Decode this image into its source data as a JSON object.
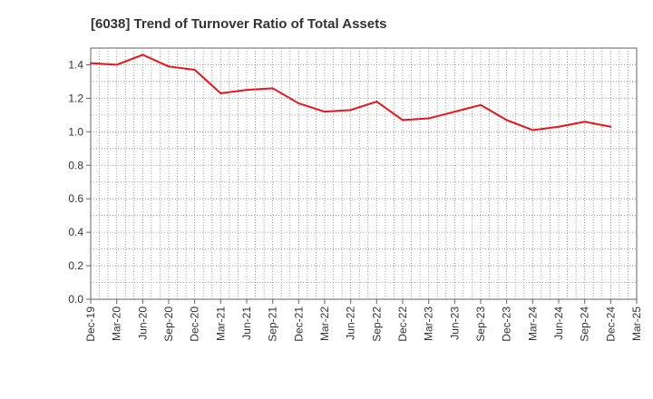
{
  "chart_data": {
    "type": "line",
    "title": "[6038]  Trend of Turnover Ratio of Total Assets",
    "xlabel": "",
    "ylabel": "",
    "ylim": [
      0,
      1.5
    ],
    "yticks": [
      0.0,
      0.2,
      0.4,
      0.6,
      0.8,
      1.0,
      1.2,
      1.4
    ],
    "ytick_labels": [
      "0.0",
      "0.2",
      "0.4",
      "0.6",
      "0.8",
      "1.0",
      "1.2",
      "1.4"
    ],
    "xtick_labels": [
      "Dec-19",
      "Mar-20",
      "Jun-20",
      "Sep-20",
      "Dec-20",
      "Mar-21",
      "Jun-21",
      "Sep-21",
      "Dec-21",
      "Mar-22",
      "Jun-22",
      "Sep-22",
      "Dec-22",
      "Mar-23",
      "Jun-23",
      "Sep-23",
      "Dec-23",
      "Mar-24",
      "Jun-24",
      "Sep-24",
      "Dec-24",
      "Mar-25"
    ],
    "grid": true,
    "series": [
      {
        "color": "#e8141b",
        "x": [
          "Dec-19",
          "Mar-20",
          "Jun-20",
          "Sep-20",
          "Dec-20",
          "Mar-21",
          "Jun-21",
          "Sep-21",
          "Dec-21",
          "Mar-22",
          "Jun-22",
          "Sep-22",
          "Dec-22",
          "Mar-23",
          "Jun-23",
          "Sep-23",
          "Dec-23",
          "Mar-24",
          "Jun-24",
          "Sep-24",
          "Dec-24"
        ],
        "values": [
          1.41,
          1.4,
          1.46,
          1.39,
          1.37,
          1.23,
          1.25,
          1.26,
          1.17,
          1.12,
          1.13,
          1.18,
          1.07,
          1.08,
          1.12,
          1.16,
          1.07,
          1.01,
          1.03,
          1.06,
          1.03
        ]
      }
    ]
  }
}
